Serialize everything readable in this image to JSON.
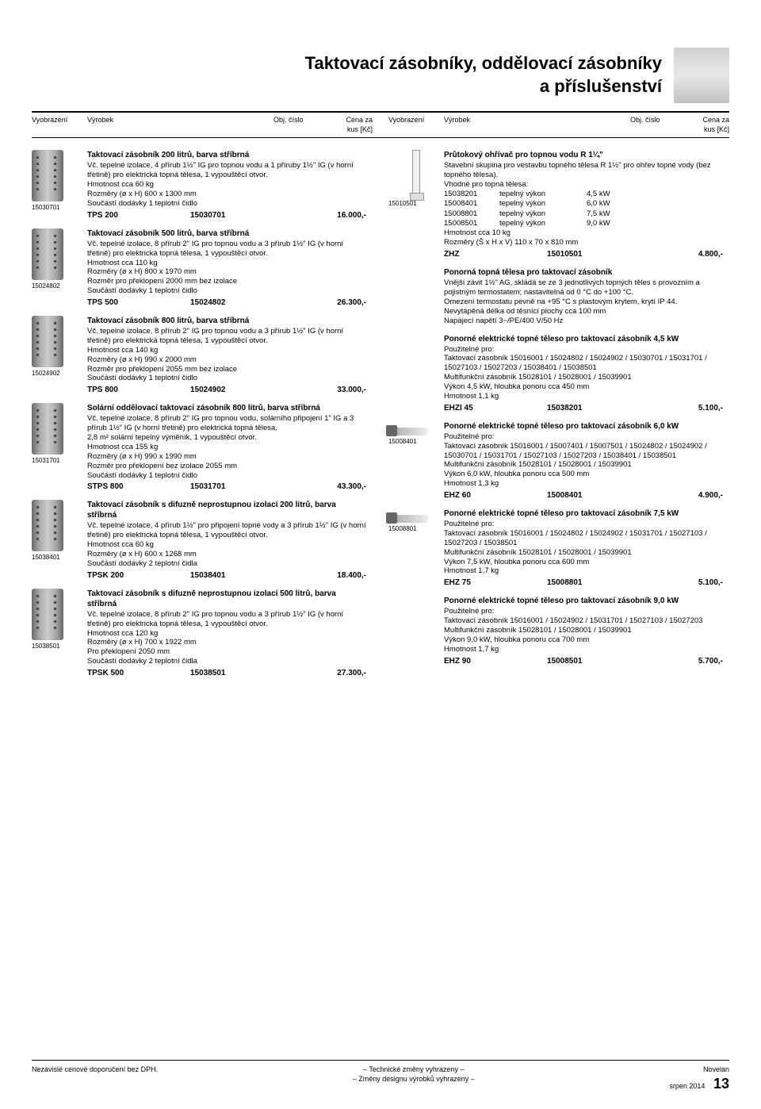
{
  "page_title_l1": "Taktovací zásobníky, oddělovací zásobníky",
  "page_title_l2": "a příslušenství",
  "col_headers": {
    "img": "Vyobrazení",
    "prod": "Výrobek",
    "num": "Obj. číslo",
    "price_l1": "Cena za",
    "price_l2": "kus [Kč]"
  },
  "left": [
    {
      "icon": "tank",
      "img_label": "15030701",
      "title": "Taktovací zásobník 200 litrů, barva stříbrná",
      "desc": "Vč. tepelné izolace, 4 přírub 1½\" IG pro topnou vodu a 1 příruby 1½\" IG (v horní třetině) pro elektrická topná tělesa, 1 vypouštěcí otvor.\nHmotnost cca 60 kg\nRozměry (ø x H) 600 x 1300 mm\nSoučástí dodávky 1 teplotní čidlo",
      "model": "TPS 200",
      "num": "15030701",
      "price": "16.000,-"
    },
    {
      "icon": "tank",
      "img_label": "15024802",
      "title": "Taktovací zásobník 500 litrů, barva stříbrná",
      "desc": "Vč. tepelné izolace, 8 přírub 2\" IG pro topnou vodu a 3 přírub 1½\" IG (v horní třetině) pro elektrická topná tělesa, 1 vypouštěcí otvor.\nHmotnost cca 110 kg\nRozměry (ø x H) 800 x 1970 mm\nRozměr pro překlopení 2000 mm bez izolace\nSoučástí dodávky 1 teplotní čidlo",
      "model": "TPS 500",
      "num": "15024802",
      "price": "26.300,-"
    },
    {
      "icon": "tank",
      "img_label": "15024902",
      "title": "Taktovací zásobník 800 litrů, barva stříbrná",
      "desc": "Vč. tepelné izolace, 8 přírub 2\" IG pro topnou vodu a 3 přírub 1½\" IG (v horní třetině) pro elektrická topná tělesa, 1 vypouštěcí otvor.\nHmotnost cca 140 kg\nRozměry (ø x H) 990 x 2000 mm\nRozměr pro překlopení 2055 mm bez izolace\nSoučástí dodávky 1 teplotní čidlo",
      "model": "TPS 800",
      "num": "15024902",
      "price": "33.000,-"
    },
    {
      "icon": "tank",
      "img_label": "15031701",
      "title": "Solární oddělovací taktovací zásobník 800 litrů, barva stříbrná",
      "desc": "Vč. tepelné izolace, 8 přírub 2\" IG pro topnou vodu, solárního připojení 1\" IG a 3 přírub 1½\" IG (v horní třetině) pro elektrická topná tělesa,\n2,8 m² solární tepelný výměník, 1 vypouštěcí otvor.\nHmotnost cca 155 kg\nRozměry (ø x H) 990 x 1990 mm\nRozměr pro překlopení bez izolace 2055 mm\nSoučástí dodávky 1 teplotní čidlo",
      "model": "STPS 800",
      "num": "15031701",
      "price": "43.300,-"
    },
    {
      "icon": "tank",
      "img_label": "15038401",
      "title": "Taktovací zásobník s difuzně neprostupnou izolací 200 litrů, barva stříbrná",
      "desc": "Vč. tepelné izolace, 4 přírub 1½\" pro připojení topné vody a 3 přírub 1½\" IG (v horní třetině) pro elektrická topná tělesa, 1 vypouštěcí otvor.\nHmotnost cca 60 kg\nRozměry (ø x H) 600 x 1268 mm\nSoučástí dodávky 2 teplotní čidla",
      "model": "TPSK 200",
      "num": "15038401",
      "price": "18.400,-"
    },
    {
      "icon": "tank",
      "img_label": "15038501",
      "title": "Taktovací zásobník s difuzně neprostupnou izolací 500 litrů, barva stříbrná",
      "desc": "Vč. tepelné izolace, 8 přírub 2\" IG pro topnou vodu a 3 přírub 1½\" IG (v horní třetině) pro elektrická topná tělesa, 1 vypouštěcí otvor.\nHmotnost cca 120 kg\nRozměry (ø x H) 700 x 1922 mm\nPro překlopení 2050 mm\nSoučástí dodávky 2 teplotní čidla",
      "model": "TPSK 500",
      "num": "15038501",
      "price": "27.300,-"
    }
  ],
  "right": [
    {
      "icon": "heater",
      "img_label": "15010501",
      "title": "Průtokový ohřívač pro topnou vodu R 1¼\"",
      "desc_pre": "Stavební skupina pro vestavbu topného tělesa R 1½\" pro ohřev topné vody (bez topného tělesa).\nVhodné pro topná tělesa:",
      "spec_rows": [
        [
          "15038201",
          "tepelný výkon",
          "4,5 kW"
        ],
        [
          "15008401",
          "tepelný výkon",
          "6,0 kW"
        ],
        [
          "15008801",
          "tepelný výkon",
          "7,5 kW"
        ],
        [
          "15008501",
          "tepelný výkon",
          "9,0 kW"
        ]
      ],
      "desc_post": "Hmotnost cca 10 kg\nRozměry (Š x H x V) 110 x 70 x 810 mm",
      "model": "ZHZ",
      "num": "15010501",
      "price": "4.800,-"
    },
    {
      "icon": "",
      "img_label": "",
      "title": "Ponorná topná tělesa pro taktovací zásobník",
      "desc": "Vnější závit 1½\" AG, skládá se ze 3 jednotlivých topných těles s provozním a pojistným termostatem; nastavitelná od 0 °C do +100 °C.\nOmezení termostatu pevně na +95 °C s plastovým krytem, krytí IP 44.\nNevytápěná délka od těsnící plochy cca 100 mm\nNapájecí napětí 3~/PE/400 V/50 Hz",
      "model": "",
      "num": "",
      "price": ""
    },
    {
      "icon": "",
      "img_label": "",
      "title": "Ponorné elektrické topné těleso pro taktovací zásobník 4,5 kW",
      "desc": "Použitelné pro:\nTaktovací zásobník 15016001 / 15024802 / 15024902 / 15030701 / 15031701 / 15027103 / 15027203 / 15038401 / 15038501\nMultifunkční zásobník 15028101 / 15028001 / 15039901\nVýkon 4,5 kW, hloubka ponoru cca 450 mm\nHmotnost 1,1 kg",
      "model": "EHZI 45",
      "num": "15038201",
      "price": "5.100,-"
    },
    {
      "icon": "element",
      "img_label": "15008401",
      "title": "Ponorné elektrické topné těleso pro taktovací zásobník 6,0 kW",
      "desc": "Použitelné pro:\nTaktovací zásobník 15016001 / 15007401 / 15007501 / 15024802 / 15024902 / 15030701 / 15031701 / 15027103 / 15027203 / 15038401 / 15038501\nMultifunkční zásobník 15028101 / 15028001 / 15039901\nVýkon 6,0 kW, hloubka ponoru cca 500 mm\nHmotnost 1,3 kg",
      "model": "EHZ 60",
      "num": "15008401",
      "price": "4.900,-"
    },
    {
      "icon": "element",
      "img_label": "15008801",
      "title": "Ponorné elektrické topné těleso pro taktovací zásobník 7,5 kW",
      "desc": "Použitelné pro:\nTaktovací zásobník 15016001 / 15024802 / 15024902 / 15031701 / 15027103 / 15027203 / 15038501\nMultifunkční zásobník 15028101 / 15028001 / 15039901\nVýkon 7,5 kW, hloubka ponoru cca 600 mm\nHmotnost 1,7 kg",
      "model": "EHZ 75",
      "num": "15008801",
      "price": "5.100,-"
    },
    {
      "icon": "",
      "img_label": "",
      "title": "Ponorné elektrické topné těleso pro taktovací zásobník 9,0 kW",
      "desc": "Použitelné pro:\nTaktovací zásobník 15016001 / 15024902 / 15031701 / 15027103 / 15027203\nMultifunkční zásobník 15028101 / 15028001 / 15039901\nVýkon 9,0 kW, hloubka ponoru cca 700 mm\nHmotnost 1,7 kg",
      "model": "EHZ 90",
      "num": "15008501",
      "price": "5.700,-"
    }
  ],
  "footer": {
    "left": "Nezávislé cenové doporučení bez DPH.",
    "center_l1": "– Technické změny vyhrazeny –",
    "center_l2": "– Změny designu výrobků vyhrazeny –",
    "right_l1": "Novelan",
    "right_l2": "srpen 2014",
    "page_num": "13"
  }
}
